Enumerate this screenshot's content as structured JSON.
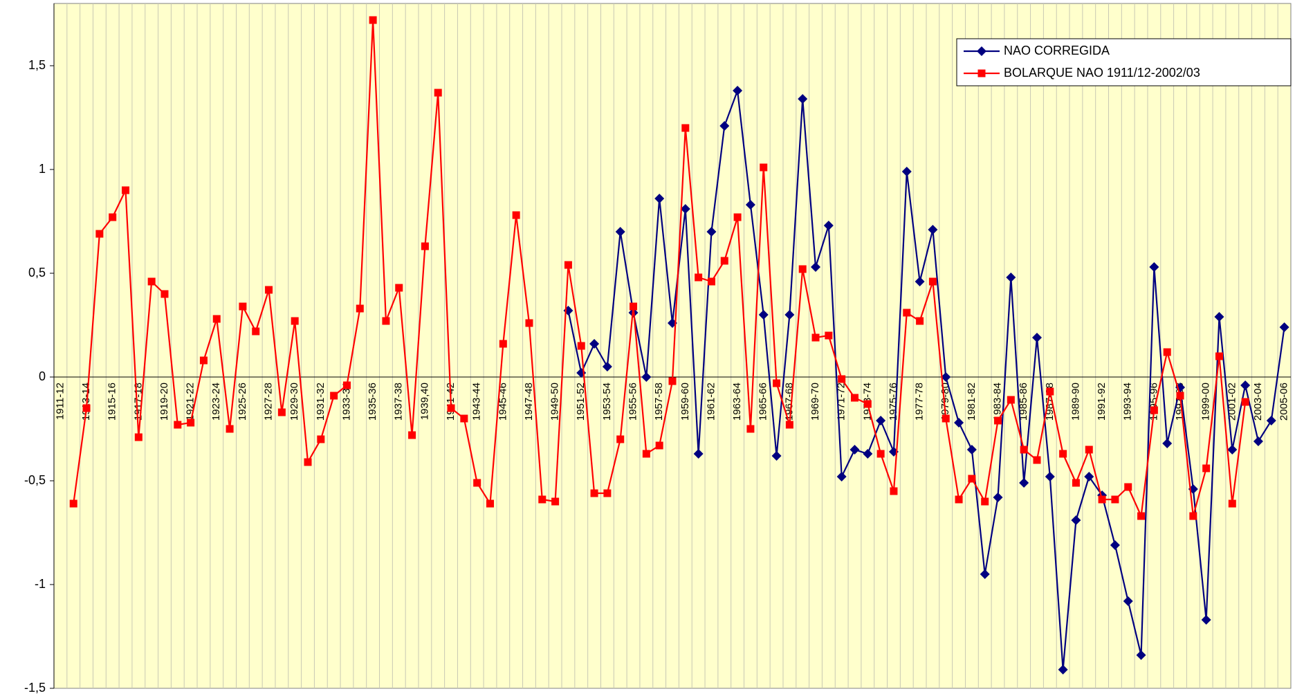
{
  "chart_data": {
    "type": "line",
    "categories": [
      "1911-12",
      null,
      "1913-14",
      null,
      "1915-16",
      null,
      "1917-18",
      null,
      "1919-20",
      null,
      "1921-22",
      null,
      "1923-24",
      null,
      "1925-26",
      null,
      "1927-28",
      null,
      "1929-30",
      null,
      "1931-32",
      null,
      "1933-34",
      null,
      "1935-36",
      null,
      "1937-38",
      null,
      "1939,40",
      null,
      "1941-42",
      null,
      "1943-44",
      null,
      "1945-46",
      null,
      "1947-48",
      null,
      "1949-50",
      null,
      "1951-52",
      null,
      "1953-54",
      null,
      "1955-56",
      null,
      "1957-58",
      null,
      "1959-60",
      null,
      "1961-62",
      null,
      "1963-64",
      null,
      "1965-66",
      null,
      "1967-68",
      null,
      "1969-70",
      null,
      "1971-72",
      null,
      "1973-74",
      null,
      "1975-76",
      null,
      "1977-78",
      null,
      "1979-80",
      null,
      "1981-82",
      null,
      "1983-84",
      null,
      "1985-86",
      null,
      "1987-88",
      null,
      "1989-90",
      null,
      "1991-92",
      null,
      "1993-94",
      null,
      "1995-96",
      null,
      "1997-98",
      null,
      "1999-00",
      null,
      "2001-02",
      null,
      "2003-04",
      null,
      "2005-06"
    ],
    "series": [
      {
        "name": "NAO CORREGIDA",
        "color": "#000080",
        "marker": "diamond",
        "values": [
          null,
          null,
          null,
          null,
          null,
          null,
          null,
          null,
          null,
          null,
          null,
          null,
          null,
          null,
          null,
          null,
          null,
          null,
          null,
          null,
          null,
          null,
          null,
          null,
          null,
          null,
          null,
          null,
          null,
          null,
          null,
          null,
          null,
          null,
          null,
          null,
          null,
          null,
          null,
          0.32,
          0.02,
          0.16,
          0.05,
          0.7,
          0.31,
          0.0,
          0.86,
          0.26,
          0.81,
          -0.37,
          0.7,
          1.21,
          1.38,
          0.83,
          0.3,
          -0.38,
          0.3,
          1.34,
          0.53,
          0.73,
          -0.48,
          -0.35,
          -0.37,
          -0.21,
          -0.36,
          0.99,
          0.46,
          0.71,
          0.0,
          -0.22,
          -0.35,
          -0.95,
          -0.58,
          0.48,
          -0.51,
          0.19,
          -0.48,
          -1.41,
          -0.69,
          -0.48,
          -0.57,
          -0.81,
          -1.08,
          -1.34,
          0.53,
          -0.32,
          -0.05,
          -0.54,
          -1.17,
          0.29,
          -0.35,
          -0.04,
          -0.31,
          -0.21,
          0.24
        ]
      },
      {
        "name": "BOLARQUE NAO 1911/12-2002/03",
        "color": "#ff0000",
        "marker": "square",
        "values": [
          null,
          -0.61,
          -0.15,
          0.69,
          0.77,
          0.9,
          -0.29,
          0.46,
          0.4,
          -0.23,
          -0.22,
          0.08,
          0.28,
          -0.25,
          0.34,
          0.22,
          0.42,
          -0.17,
          0.27,
          -0.41,
          -0.3,
          -0.09,
          -0.04,
          0.33,
          1.72,
          0.27,
          0.43,
          -0.28,
          0.63,
          1.37,
          -0.15,
          -0.2,
          -0.51,
          -0.61,
          0.16,
          0.78,
          0.26,
          -0.59,
          -0.6,
          0.54,
          0.15,
          -0.56,
          -0.56,
          -0.3,
          0.34,
          -0.37,
          -0.33,
          -0.02,
          1.2,
          0.48,
          0.46,
          0.56,
          0.77,
          -0.25,
          1.01,
          -0.03,
          -0.23,
          0.52,
          0.19,
          0.2,
          -0.01,
          -0.1,
          -0.13,
          -0.37,
          -0.55,
          0.31,
          0.27,
          0.46,
          -0.2,
          -0.59,
          -0.49,
          -0.6,
          -0.21,
          -0.11,
          -0.35,
          -0.4,
          -0.07,
          -0.37,
          -0.51,
          -0.35,
          -0.59,
          -0.59,
          -0.53,
          -0.67,
          -0.16,
          0.12,
          -0.09,
          -0.67,
          -0.44,
          0.1,
          -0.61,
          -0.12,
          null,
          null,
          null
        ]
      }
    ],
    "ylim": [
      -1.5,
      1.8
    ],
    "yticks": [
      {
        "value": -1.5,
        "label": "-1,5"
      },
      -1,
      {
        "value": -0.5,
        "label": "-0,5"
      },
      0,
      {
        "value": 0.5,
        "label": "0,5"
      },
      1,
      {
        "value": 1.5,
        "label": "1,5"
      }
    ],
    "category_grid": true,
    "legend": "upper right",
    "background": "#ffffcc"
  }
}
